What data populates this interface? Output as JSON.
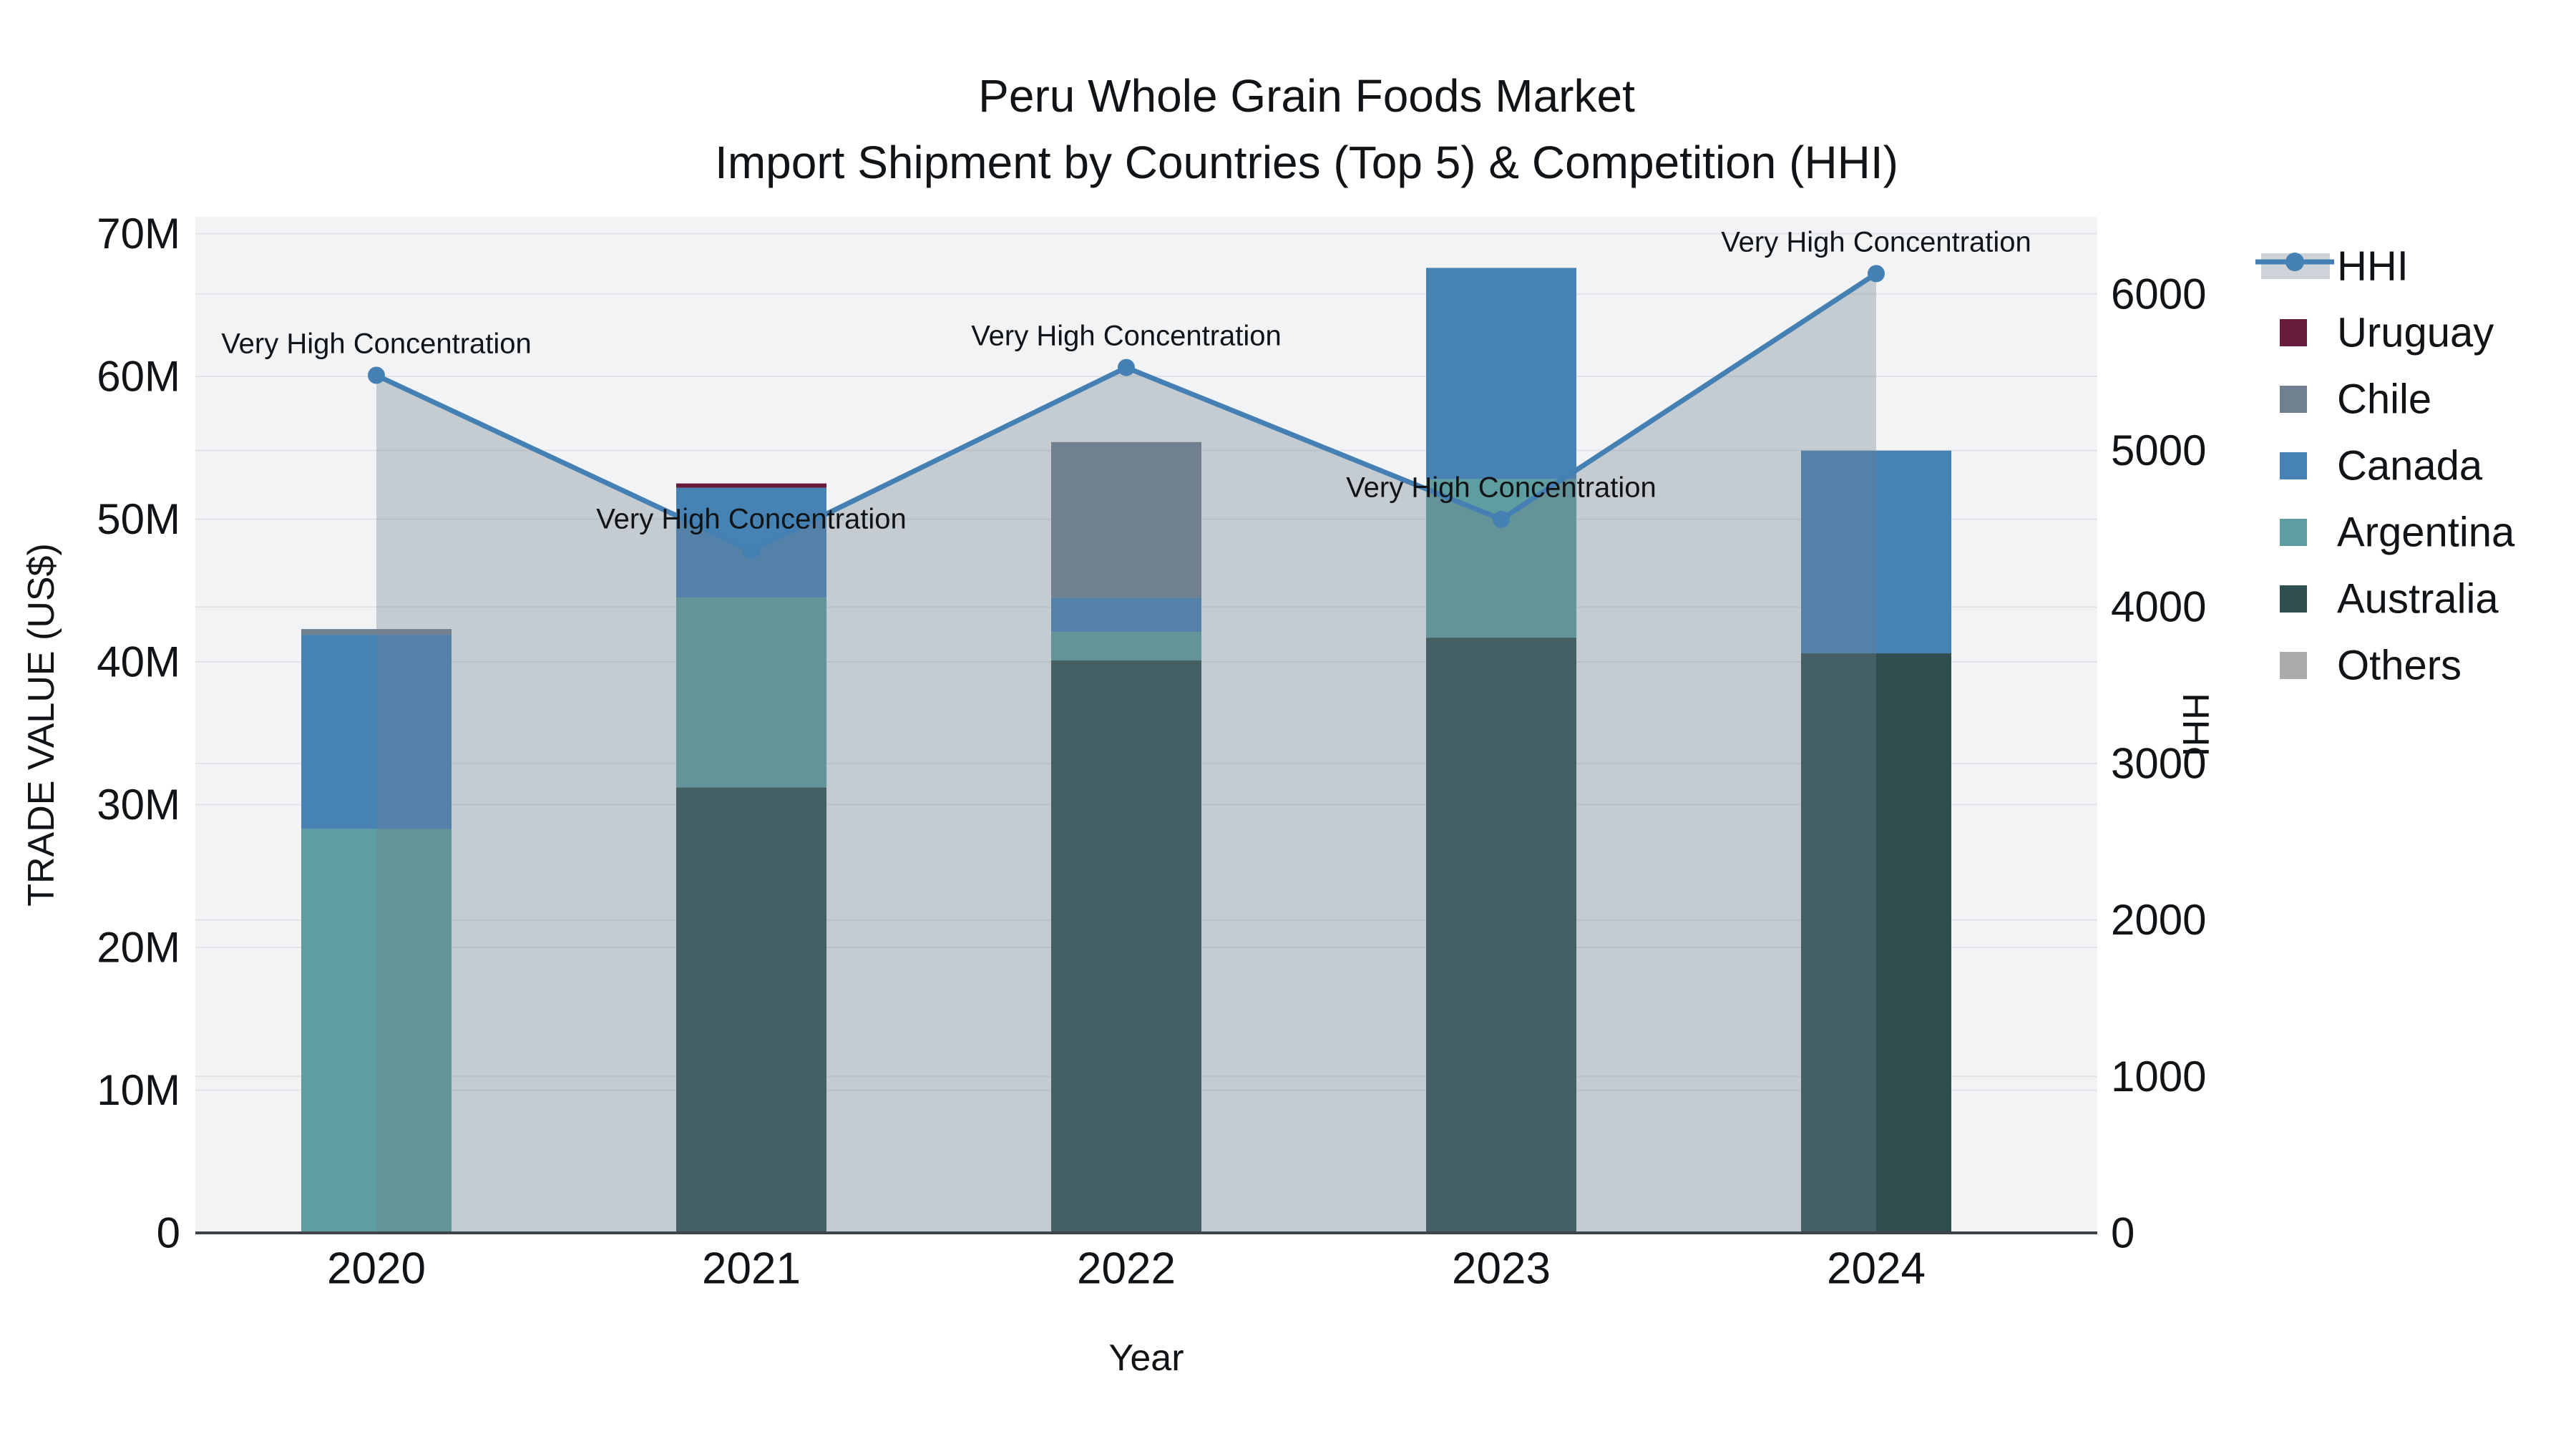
{
  "chart_data": {
    "type": "bar",
    "subtype": "stacked-bar-with-line",
    "title": "Peru Whole Grain Foods Market",
    "subtitle": "Import Shipment by Countries (Top 5) & Competition (HHI)",
    "xlabel": "Year",
    "ylabel_left": "TRADE VALUE (US$)",
    "ylabel_right": "HHI",
    "categories": [
      "2020",
      "2021",
      "2022",
      "2023",
      "2024"
    ],
    "stack_order_bottom_to_top": [
      "Australia",
      "Argentina",
      "Canada",
      "Chile",
      "Uruguay",
      "Others"
    ],
    "series": [
      {
        "name": "Uruguay",
        "color": "#681C3C",
        "values": [
          0,
          0.3,
          0,
          0,
          0
        ]
      },
      {
        "name": "Chile",
        "color": "#708090",
        "values": [
          0.4,
          0,
          10.9,
          0,
          0
        ]
      },
      {
        "name": "Canada",
        "color": "#4682B4",
        "values": [
          13.6,
          7.7,
          2.4,
          14.8,
          14.2
        ]
      },
      {
        "name": "Argentina",
        "color": "#5F9EA0",
        "values": [
          28.3,
          13.3,
          2.0,
          11.1,
          0
        ]
      },
      {
        "name": "Australia",
        "color": "#2F4F4F",
        "values": [
          0,
          31.2,
          40.1,
          41.7,
          40.6
        ]
      },
      {
        "name": "Others",
        "color": "#ABABAB",
        "values": [
          0,
          0,
          0,
          0,
          0
        ]
      }
    ],
    "bar_totals_millions": [
      42.3,
      52.5,
      55.4,
      67.6,
      54.8
    ],
    "line_series": {
      "name": "HHI",
      "values": [
        5480,
        4360,
        5530,
        4560,
        6130
      ],
      "line_color": "#4580B4",
      "marker_color": "#4580B4",
      "area_fill": "rgba(112,128,144,0.35)"
    },
    "annotations": [
      "Very High Concentration",
      "Very High Concentration",
      "Very High Concentration",
      "Very High Concentration",
      "Very High Concentration"
    ],
    "axis_left": {
      "ticks": [
        "0",
        "10M",
        "20M",
        "30M",
        "40M",
        "50M",
        "60M",
        "70M"
      ],
      "tick_values": [
        0,
        10,
        20,
        30,
        40,
        50,
        60,
        70
      ],
      "max": 71.2,
      "units": "millions USD"
    },
    "axis_right": {
      "ticks": [
        "0",
        "1000",
        "2000",
        "3000",
        "4000",
        "5000",
        "6000"
      ],
      "tick_values": [
        0,
        1000,
        2000,
        3000,
        4000,
        5000,
        6000
      ],
      "max": 6493
    },
    "legend_order": [
      "HHI",
      "Uruguay",
      "Chile",
      "Canada",
      "Argentina",
      "Australia",
      "Others"
    ],
    "legend_position": "right",
    "grid_on": true,
    "colors": {
      "plot_background": "#F2F3F4",
      "page_background": "#FFFFFF",
      "gridline": "#E1E3E7",
      "axis_line": "#3E434A",
      "text": "#111417"
    }
  }
}
